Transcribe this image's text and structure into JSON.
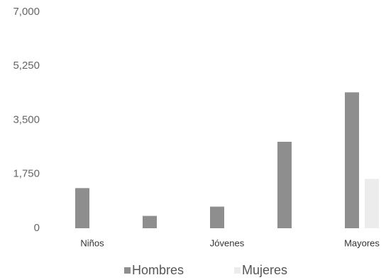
{
  "chart_data": {
    "type": "bar",
    "categories": [
      "Niños",
      null,
      "Jóvenes",
      null,
      "Mayores"
    ],
    "series": [
      {
        "name": "Hombres",
        "color": "#8e8e8e",
        "values": [
          1300,
          400,
          700,
          2800,
          4400
        ]
      },
      {
        "name": "Mujeres",
        "color": "#ececec",
        "values": [
          null,
          null,
          null,
          null,
          1600
        ]
      }
    ],
    "ylim": [
      0,
      7000
    ],
    "yticks": [
      0,
      {
        "value": 1750,
        "label": "1,750"
      },
      {
        "value": 3500,
        "label": "3,500"
      },
      {
        "value": 5250,
        "label": "5,250"
      },
      {
        "value": 7000,
        "label": "7,000"
      }
    ],
    "legend": "bottom"
  }
}
